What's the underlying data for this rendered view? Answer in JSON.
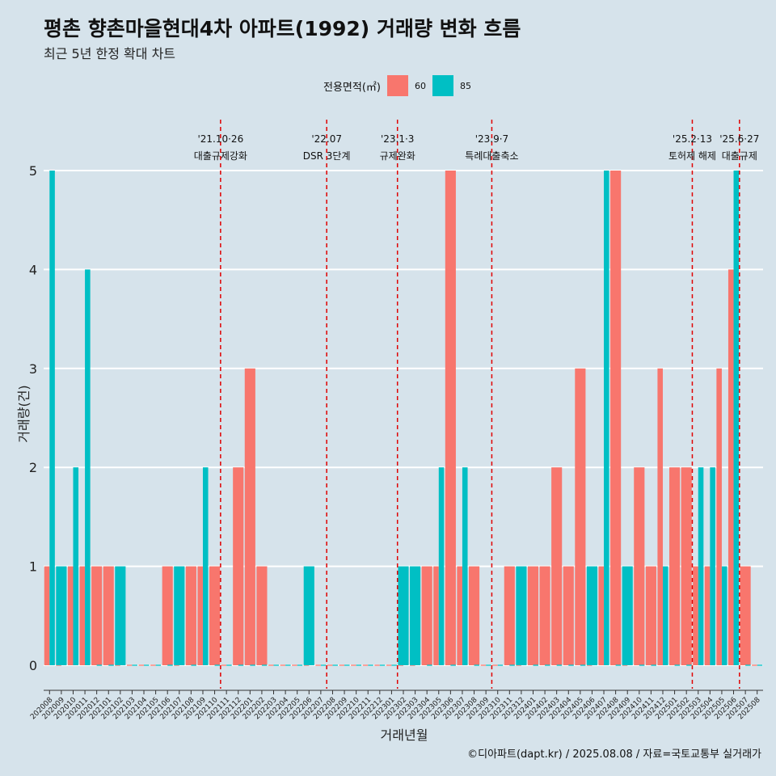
{
  "title": "평촌 향촌마을현대4차 아파트(1992) 거래량 변화 흐름",
  "subtitle": "최근 5년 한정 확대 차트",
  "caption": "©디아파트(dapt.kr) / 2025.08.08 / 자료=국토교통부 실거래가",
  "legend": {
    "title": "전용면적(㎡)",
    "items": [
      {
        "label": "60",
        "color": "#f8766d"
      },
      {
        "label": "85",
        "color": "#00bfc4"
      }
    ]
  },
  "chart_data": {
    "type": "bar",
    "title": "평촌 향촌마을현대4차 아파트(1992) 거래량 변화 흐름",
    "xlabel": "거래년월",
    "ylabel": "거래량(건)",
    "ylim": [
      0,
      5
    ],
    "yticks": [
      0,
      1,
      2,
      3,
      4,
      5
    ],
    "categories": [
      "202008",
      "202009",
      "202010",
      "202011",
      "202012",
      "202101",
      "202102",
      "202103",
      "202104",
      "202105",
      "202106",
      "202107",
      "202108",
      "202109",
      "202110",
      "202111",
      "202112",
      "202201",
      "202202",
      "202203",
      "202204",
      "202205",
      "202206",
      "202207",
      "202208",
      "202209",
      "202210",
      "202211",
      "202212",
      "202301",
      "202302",
      "202303",
      "202304",
      "202305",
      "202306",
      "202307",
      "202308",
      "202309",
      "202310",
      "202311",
      "202312",
      "202401",
      "202402",
      "202403",
      "202404",
      "202405",
      "202406",
      "202407",
      "202408",
      "202409",
      "202410",
      "202411",
      "202412",
      "202501",
      "202502",
      "202503",
      "202504",
      "202505",
      "202506",
      "202507",
      "202508"
    ],
    "series": [
      {
        "name": "60",
        "color": "#f8766d",
        "values": [
          1,
          0,
          1,
          1,
          1,
          1,
          0,
          0,
          0,
          0,
          1,
          0,
          1,
          1,
          1,
          0,
          2,
          3,
          1,
          0,
          0,
          0,
          0,
          0,
          0,
          0,
          0,
          0,
          0,
          0,
          0,
          0,
          1,
          1,
          5,
          1,
          1,
          0,
          0,
          1,
          0,
          1,
          1,
          2,
          1,
          3,
          0,
          1,
          5,
          0,
          2,
          1,
          3,
          2,
          2,
          1,
          1,
          3,
          4,
          1,
          0
        ]
      },
      {
        "name": "85",
        "color": "#00bfc4",
        "values": [
          5,
          1,
          2,
          4,
          0,
          0,
          1,
          0,
          0,
          0,
          0,
          1,
          0,
          2,
          0,
          0,
          0,
          0,
          0,
          0,
          0,
          0,
          1,
          0,
          0,
          0,
          0,
          0,
          0,
          0,
          1,
          1,
          0,
          2,
          0,
          2,
          0,
          0,
          0,
          0,
          1,
          0,
          0,
          0,
          0,
          0,
          1,
          5,
          0,
          1,
          0,
          0,
          1,
          0,
          0,
          2,
          2,
          1,
          5,
          0,
          0
        ]
      }
    ],
    "events": [
      {
        "label_top": "'21.10·26",
        "label_bottom": "대출규제강화",
        "after_category": "202110"
      },
      {
        "label_top": "'22.07",
        "label_bottom": "DSR 3단계",
        "after_category": "202207"
      },
      {
        "label_top": "'23.1·3",
        "label_bottom": "규제완화",
        "after_category": "202301"
      },
      {
        "label_top": "'23.9·7",
        "label_bottom": "특례대출축소",
        "after_category": "202309"
      },
      {
        "label_top": "'25.2·13",
        "label_bottom": "토허제 해제",
        "after_category": "202502"
      },
      {
        "label_top": "'25.6·27",
        "label_bottom": "대출규제",
        "after_category": "202506"
      }
    ]
  }
}
